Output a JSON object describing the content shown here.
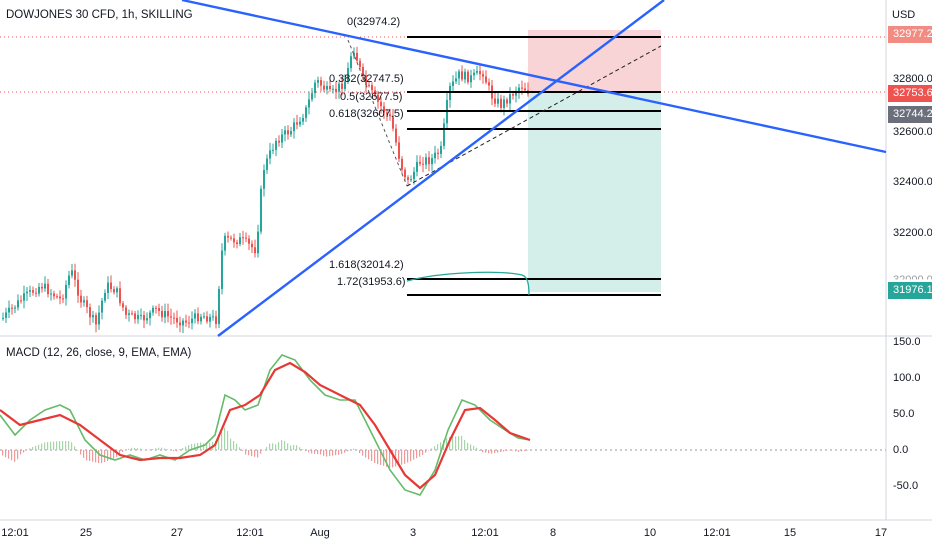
{
  "chart_title": "DOWJONES 30 CFD, 1h, SKILLING",
  "currency": "USD",
  "price_axis": {
    "ticks": [
      "32800.0",
      "32600.0",
      "32400.0",
      "32200.0"
    ],
    "partial_tick": "32000.0",
    "badges": {
      "target": "32977.2",
      "last": "32753.6",
      "ref": "32744.2",
      "stop": "31976.1"
    }
  },
  "fib_labels": [
    "0(32974.2)",
    "0.382(32747.5)",
    "0.5(32677.5)",
    "0.618(32607.5)",
    "1.618(32014.2)",
    "1.72(31953.6)"
  ],
  "indicator": {
    "label": "MACD (12, 26, close, 9, EMA, EMA)",
    "axis_ticks": [
      "150.0",
      "100.0",
      "50.0",
      "0.0",
      "-50.0"
    ]
  },
  "time_axis": [
    "12:01",
    "25",
    "27",
    "12:01",
    "Aug",
    "3",
    "12:01",
    "8",
    "10",
    "12:01",
    "15",
    "17"
  ],
  "colors": {
    "up_candle": "#26a69a",
    "down_candle": "#ef5350",
    "trendline": "#2962ff",
    "macd_line": "#66bb6a",
    "signal_line": "#e53935",
    "stop_zone": "#f7c9cd",
    "profit_zone": "#c9ebe4",
    "last_price_badge": "#ef5350",
    "stop_badge": "#26a69a",
    "ref_badge": "#6b6f7b",
    "target_badge": "#f28b82"
  }
}
